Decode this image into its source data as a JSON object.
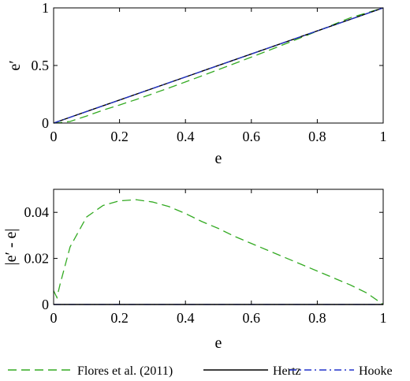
{
  "chart_data": [
    {
      "type": "line",
      "xlabel": "e",
      "ylabel": "e′",
      "xlim": [
        0,
        1
      ],
      "ylim": [
        0,
        1
      ],
      "xticks": [
        "0",
        "0.2",
        "0.4",
        "0.6",
        "0.8",
        "1"
      ],
      "yticks": [
        "0",
        "0.5",
        "1"
      ],
      "grid": false,
      "series": [
        {
          "name": "Flores et al. (2011)",
          "color": "#33aa22",
          "style": "dashed",
          "x": [
            0,
            0.02,
            0.05,
            0.1,
            0.15,
            0.2,
            0.25,
            0.3,
            0.35,
            0.4,
            0.45,
            0.5,
            0.55,
            0.6,
            0.65,
            0.7,
            0.75,
            0.8,
            0.85,
            0.9,
            0.95,
            1.0
          ],
          "y": [
            0,
            0.004,
            0.014,
            0.061,
            0.112,
            0.157,
            0.204,
            0.254,
            0.305,
            0.357,
            0.41,
            0.464,
            0.518,
            0.573,
            0.628,
            0.684,
            0.741,
            0.798,
            0.856,
            0.914,
            0.957,
            1.0
          ]
        },
        {
          "name": "Hertz",
          "color": "#000000",
          "style": "solid",
          "x": [
            0,
            1
          ],
          "y": [
            0,
            1
          ]
        },
        {
          "name": "Hooke",
          "color": "#2233cc",
          "style": "dashdot",
          "x": [
            0,
            1
          ],
          "y": [
            0,
            1
          ]
        }
      ]
    },
    {
      "type": "line",
      "xlabel": "e",
      "ylabel": "|e′ - e|",
      "xlim": [
        0,
        1
      ],
      "ylim": [
        0,
        0.05
      ],
      "xticks": [
        "0",
        "0.2",
        "0.4",
        "0.6",
        "0.8",
        "1"
      ],
      "yticks": [
        "0",
        "0.02",
        "0.04"
      ],
      "grid": false,
      "series": [
        {
          "name": "Flores et al. (2011)",
          "color": "#33aa22",
          "style": "dashed",
          "x": [
            0,
            0.01,
            0.02,
            0.05,
            0.1,
            0.15,
            0.2,
            0.25,
            0.3,
            0.35,
            0.4,
            0.45,
            0.5,
            0.55,
            0.6,
            0.65,
            0.7,
            0.75,
            0.8,
            0.85,
            0.9,
            0.95,
            1.0
          ],
          "y": [
            0.006,
            0.003,
            0.009,
            0.025,
            0.038,
            0.043,
            0.045,
            0.0455,
            0.0445,
            0.0425,
            0.0395,
            0.036,
            0.033,
            0.0295,
            0.0265,
            0.0235,
            0.0205,
            0.0175,
            0.0145,
            0.0115,
            0.0085,
            0.005,
            0.0
          ]
        },
        {
          "name": "Hertz",
          "color": "#000000",
          "style": "solid",
          "x": [
            0,
            1
          ],
          "y": [
            0,
            0
          ]
        },
        {
          "name": "Hooke",
          "color": "#2233cc",
          "style": "dashdot",
          "x": [
            0,
            1
          ],
          "y": [
            0,
            0
          ]
        }
      ]
    }
  ],
  "legend": {
    "placement": "bottom",
    "entries": [
      {
        "label": "Flores et al. (2011)",
        "color": "#33aa22",
        "style": "dashed"
      },
      {
        "label": "Hertz",
        "color": "#000000",
        "style": "solid"
      },
      {
        "label": "Hooke",
        "color": "#2233cc",
        "style": "dashdot"
      }
    ]
  }
}
